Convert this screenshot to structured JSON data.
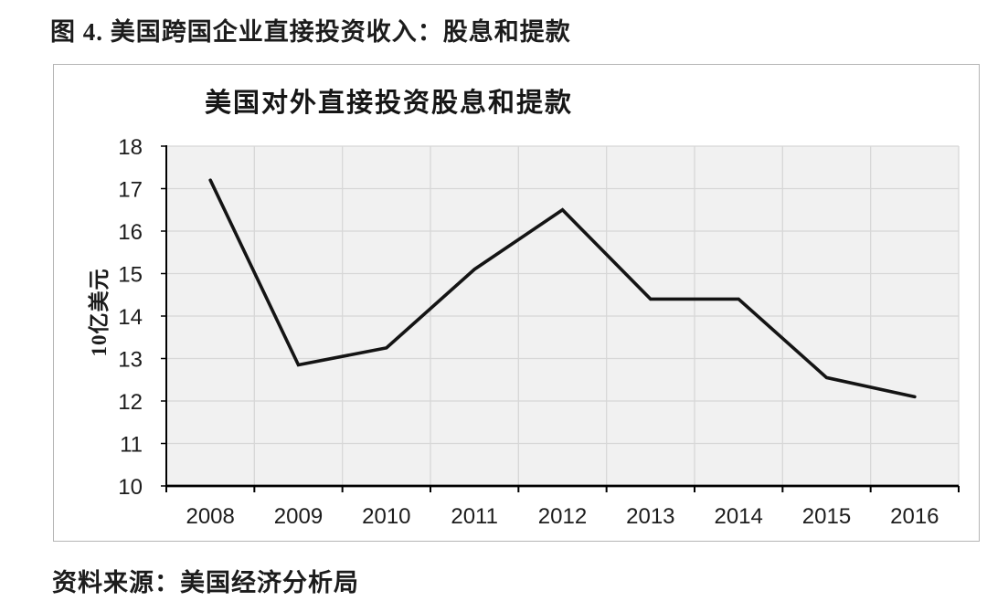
{
  "figure": {
    "title": "图 4. 美国跨国企业直接投资收入：股息和提款",
    "source": "资料来源：美国经济分析局"
  },
  "chart_data": {
    "type": "line",
    "title": "美国对外直接投资股息和提款",
    "xlabel": "",
    "ylabel": "10亿美元",
    "categories": [
      "2008",
      "2009",
      "2010",
      "2011",
      "2012",
      "2013",
      "2014",
      "2015",
      "2016"
    ],
    "series": [
      {
        "name": "美国对外直接投资股息和提款",
        "values": [
          17.2,
          12.85,
          13.25,
          15.1,
          16.5,
          14.4,
          14.4,
          12.55,
          12.1
        ]
      }
    ],
    "ylim": [
      10,
      18
    ],
    "ytick_step": 1,
    "grid": true,
    "legend_position": "none",
    "colors": {
      "line": "#141414",
      "plot_background": "#f1f1f1",
      "gridline": "#d7d7d7",
      "axis": "#000000",
      "text": "#1c1c1c"
    }
  }
}
